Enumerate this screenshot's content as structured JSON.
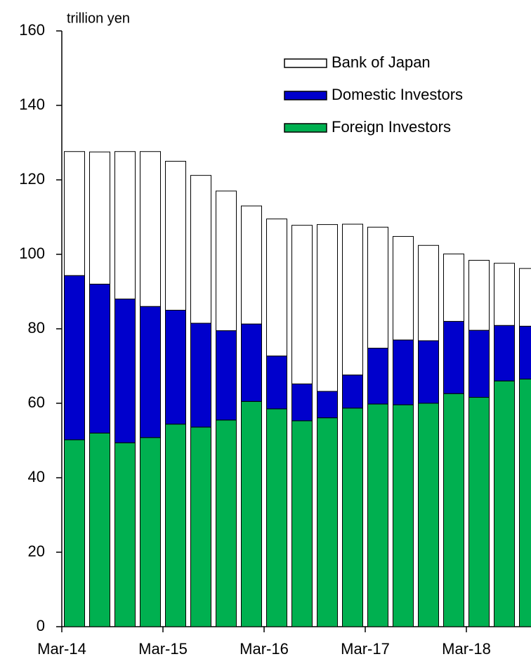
{
  "chart_data": {
    "type": "stacked_bar",
    "y_label": "trillion yen",
    "categories": [
      "Mar-14",
      null,
      null,
      null,
      "Mar-15",
      null,
      null,
      null,
      "Mar-16",
      null,
      null,
      null,
      "Mar-17",
      null,
      null,
      null,
      "Mar-18",
      null,
      null
    ],
    "series": [
      {
        "name": "Foreign Investors",
        "color": "#00b050",
        "values": [
          50.2,
          52.0,
          49.4,
          50.8,
          54.4,
          53.6,
          55.5,
          60.5,
          58.5,
          55.3,
          56.1,
          58.7,
          59.8,
          59.6,
          60.0,
          62.6,
          61.6,
          66.0,
          66.5
        ]
      },
      {
        "name": "Domestic Investors",
        "color": "#0000cc",
        "values": [
          44.1,
          40.0,
          38.6,
          35.2,
          30.6,
          27.9,
          24.0,
          20.8,
          14.2,
          9.9,
          7.1,
          8.9,
          15.0,
          17.4,
          16.8,
          19.4,
          18.0,
          14.9,
          14.2
        ]
      },
      {
        "name": "Bank of Japan",
        "color": "#ffffff",
        "values": [
          33.3,
          35.5,
          39.6,
          41.6,
          40.0,
          39.7,
          37.5,
          31.7,
          36.8,
          42.6,
          44.8,
          40.5,
          32.5,
          27.8,
          25.6,
          18.1,
          18.8,
          16.7,
          15.5
        ]
      }
    ],
    "ylim": [
      0,
      160
    ],
    "yticks": [
      0,
      20,
      40,
      60,
      80,
      100,
      120,
      140,
      160
    ],
    "grid": false,
    "legend": "upper right"
  }
}
